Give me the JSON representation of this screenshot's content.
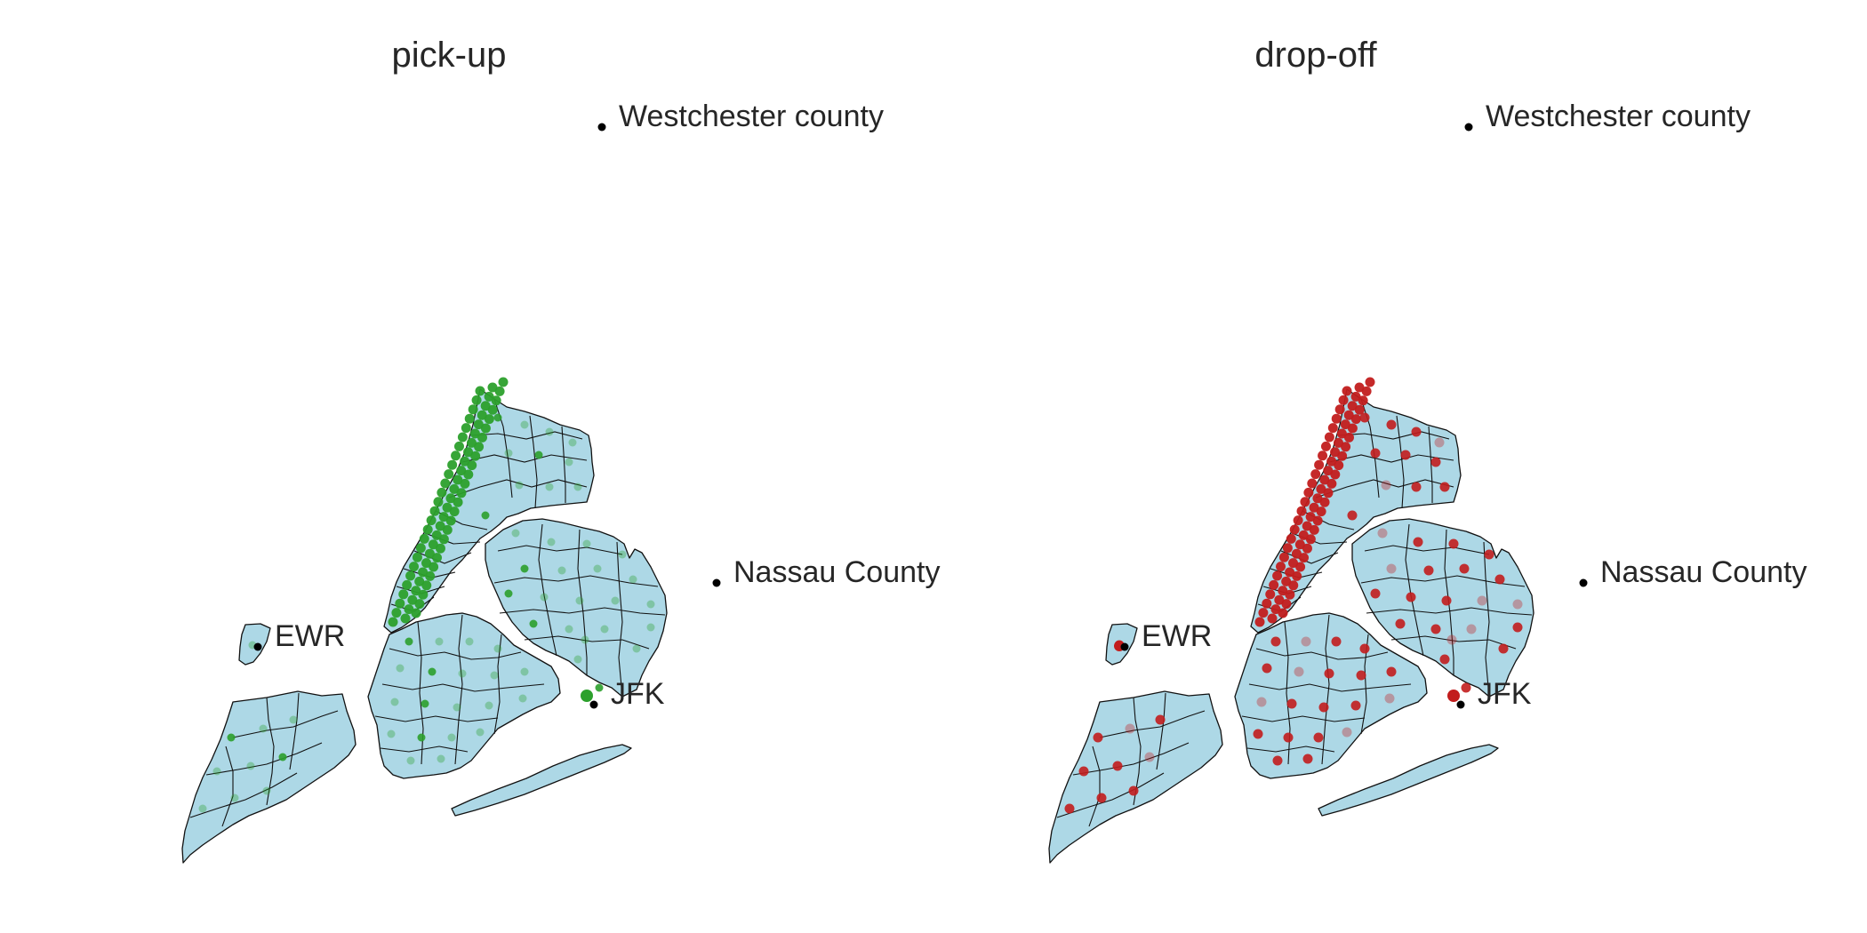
{
  "colors": {
    "land": "#add8e6",
    "boundary": "#111111",
    "location_point": "#000000",
    "pickup_dot": "#2ca02c",
    "dropoff_dot": "#c21d1d",
    "background": "#ffffff"
  },
  "panels": [
    {
      "id": "pickup",
      "title": "pick-up",
      "dot_color_key": "pickup_dot",
      "density": "manhattan-heavy"
    },
    {
      "id": "dropoff",
      "title": "drop-off",
      "dot_color_key": "dropoff_dot",
      "density": "citywide"
    }
  ],
  "locations": [
    {
      "key": "westchester",
      "label": "Westchester county"
    },
    {
      "key": "nassau",
      "label": "Nassau County"
    },
    {
      "key": "ewr",
      "label": "EWR"
    },
    {
      "key": "jfk",
      "label": "JFK"
    }
  ]
}
